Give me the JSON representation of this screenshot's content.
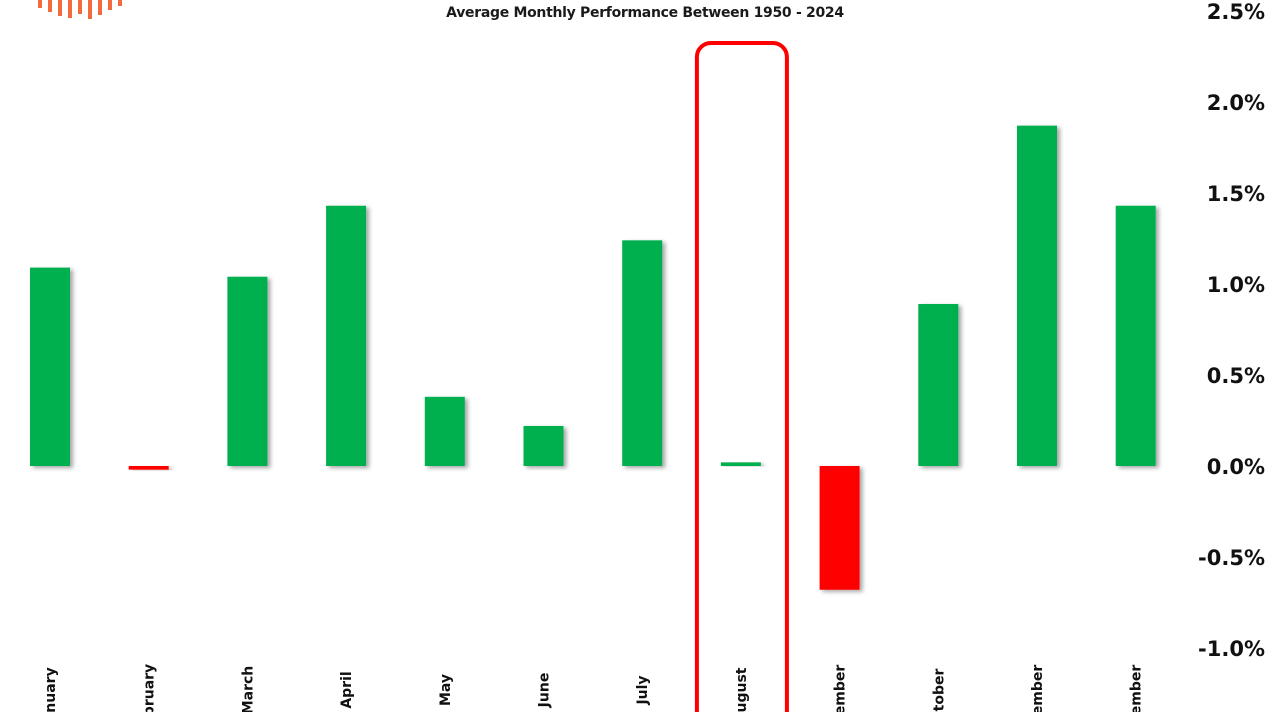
{
  "chart_data": {
    "type": "bar",
    "title": "Average Monthly Performance Between 1950 - 2024",
    "categories": [
      "January",
      "February",
      "March",
      "April",
      "May",
      "June",
      "July",
      "August",
      "September",
      "October",
      "November",
      "December"
    ],
    "visible_category_labels": [
      "nuary",
      "bruary",
      "March",
      "April",
      "May",
      "June",
      "July",
      "ugust",
      "ember",
      "tober",
      "ember",
      "ember"
    ],
    "values": [
      1.09,
      -0.02,
      1.04,
      1.43,
      0.38,
      0.22,
      1.24,
      0.02,
      -0.68,
      0.89,
      1.87,
      1.43
    ],
    "y_ticks": [
      "2.5%",
      "2.0%",
      "1.5%",
      "1.0%",
      "0.5%",
      "0.0%",
      "-0.5%",
      "-1.0%"
    ],
    "y_tick_values": [
      2.5,
      2.0,
      1.5,
      1.0,
      0.5,
      0.0,
      -0.5,
      -1.0
    ],
    "ylim": [
      -1.0,
      2.5
    ],
    "y_axis_side": "right",
    "grid": false,
    "legend": "none",
    "colors": {
      "positive": "#00b050",
      "negative": "#ff0000",
      "highlight": "#ff0000",
      "logo": "#f26a3d"
    },
    "highlighted_category": "August"
  }
}
